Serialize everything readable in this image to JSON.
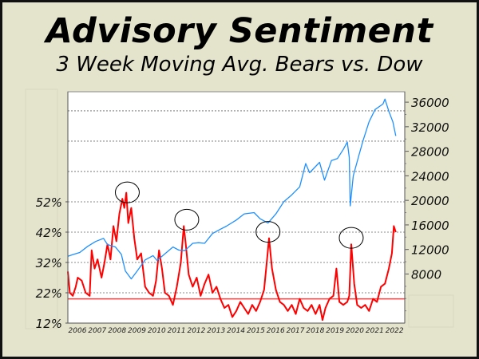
{
  "chart_data": {
    "type": "line",
    "title": "Advisory Sentiment",
    "subtitle": "3 Week Moving Avg. Bears vs. Dow",
    "colors": {
      "bears": "#ff0000",
      "dow": "#1e90ff",
      "reference": "#ff4040",
      "background": "#e4e3cc"
    },
    "x_ticks": [
      "2006",
      "2007",
      "2008",
      "2009",
      "2010",
      "2011",
      "2012",
      "2013",
      "2014",
      "2015",
      "2016",
      "2017",
      "2018",
      "2019",
      "2020",
      "2021",
      "2022"
    ],
    "xlim": [
      2006,
      2023
    ],
    "left_axis": {
      "ticks": [
        "12%",
        "22%",
        "32%",
        "42%",
        "52%"
      ],
      "tick_values": [
        12,
        22,
        32,
        42,
        52
      ],
      "ylim": [
        12,
        88.3
      ]
    },
    "right_axis": {
      "ticks": [
        "8000",
        "12000",
        "16000",
        "20000",
        "24000",
        "28000",
        "32000",
        "36000"
      ],
      "tick_values": [
        8000,
        12000,
        16000,
        20000,
        24000,
        28000,
        32000,
        36000
      ],
      "ylim": [
        0,
        37700
      ]
    },
    "reference_line": {
      "axis": "left",
      "value": 20
    },
    "grid": "dashed horizontal",
    "series": [
      {
        "name": "Bears (3 Week Moving Avg.)",
        "axis": "left",
        "x": [
          2006.0,
          2006.1,
          2006.25,
          2006.4,
          2006.5,
          2006.7,
          2006.9,
          2007.1,
          2007.2,
          2007.35,
          2007.5,
          2007.7,
          2007.85,
          2008.0,
          2008.15,
          2008.3,
          2008.45,
          2008.6,
          2008.75,
          2008.85,
          2008.95,
          2009.05,
          2009.2,
          2009.35,
          2009.5,
          2009.7,
          2009.9,
          2010.1,
          2010.3,
          2010.45,
          2010.6,
          2010.75,
          2010.9,
          2011.1,
          2011.3,
          2011.5,
          2011.7,
          2011.85,
          2011.95,
          2012.1,
          2012.3,
          2012.5,
          2012.7,
          2012.9,
          2013.1,
          2013.3,
          2013.5,
          2013.7,
          2013.9,
          2014.1,
          2014.3,
          2014.5,
          2014.7,
          2014.9,
          2015.1,
          2015.3,
          2015.5,
          2015.7,
          2015.9,
          2016.05,
          2016.15,
          2016.3,
          2016.5,
          2016.7,
          2016.9,
          2017.1,
          2017.3,
          2017.5,
          2017.7,
          2017.9,
          2018.1,
          2018.3,
          2018.5,
          2018.7,
          2018.85,
          2019.0,
          2019.2,
          2019.4,
          2019.55,
          2019.7,
          2019.9,
          2020.1,
          2020.2,
          2020.3,
          2020.45,
          2020.6,
          2020.8,
          2021.0,
          2021.2,
          2021.4,
          2021.6,
          2021.8,
          2022.0,
          2022.2,
          2022.35,
          2022.45,
          2022.55
        ],
        "values": [
          29,
          22,
          21,
          24,
          27,
          26,
          22,
          21,
          36,
          30,
          33,
          27,
          32,
          38,
          33,
          44,
          39,
          48,
          53,
          50,
          55,
          45,
          50,
          40,
          33,
          35,
          24,
          22,
          21,
          26,
          36,
          30,
          22,
          21,
          18,
          24,
          32,
          44,
          38,
          28,
          24,
          27,
          21,
          25,
          28,
          22,
          24,
          20,
          17,
          18,
          14,
          16,
          19,
          17,
          15,
          18,
          16,
          19,
          23,
          33,
          40,
          30,
          23,
          19,
          18,
          16,
          18,
          15,
          20,
          17,
          16,
          18,
          15,
          18,
          13,
          17,
          20,
          21,
          30,
          19,
          18,
          19,
          21,
          38,
          25,
          18,
          17,
          18,
          16,
          20,
          19,
          24,
          25,
          30,
          35,
          44,
          42
        ]
      },
      {
        "name": "Dow",
        "axis": "right",
        "x": [
          2006.0,
          2006.3,
          2006.6,
          2007.0,
          2007.4,
          2007.8,
          2008.0,
          2008.4,
          2008.7,
          2008.9,
          2009.2,
          2009.5,
          2009.9,
          2010.3,
          2010.5,
          2010.9,
          2011.3,
          2011.6,
          2011.9,
          2012.3,
          2012.6,
          2012.9,
          2013.3,
          2013.7,
          2014.0,
          2014.5,
          2014.9,
          2015.4,
          2015.7,
          2016.1,
          2016.5,
          2016.9,
          2017.3,
          2017.7,
          2018.0,
          2018.2,
          2018.7,
          2018.95,
          2019.3,
          2019.6,
          2019.9,
          2020.1,
          2020.2,
          2020.25,
          2020.4,
          2020.7,
          2020.9,
          2021.2,
          2021.5,
          2021.9,
          2022.0,
          2022.2,
          2022.4,
          2022.55
        ],
        "values": [
          10900,
          11200,
          11500,
          12500,
          13300,
          13800,
          12800,
          12400,
          11200,
          8500,
          7200,
          8500,
          10300,
          11000,
          10200,
          11300,
          12400,
          11900,
          11800,
          13000,
          13100,
          13000,
          14600,
          15300,
          15800,
          16800,
          17800,
          18000,
          17000,
          16300,
          17800,
          19800,
          20900,
          22200,
          26000,
          24500,
          26200,
          23300,
          26500,
          26800,
          28300,
          29500,
          27000,
          19100,
          24000,
          27500,
          29800,
          32800,
          34800,
          35700,
          36500,
          34500,
          32800,
          30500
        ]
      }
    ],
    "annotations": [
      {
        "shape": "circle",
        "x": 2009.0,
        "value": 53
      },
      {
        "shape": "circle",
        "x": 2012.0,
        "value": 44
      },
      {
        "shape": "circle",
        "x": 2016.1,
        "value": 40
      },
      {
        "shape": "circle",
        "x": 2020.3,
        "value": 38
      }
    ]
  }
}
